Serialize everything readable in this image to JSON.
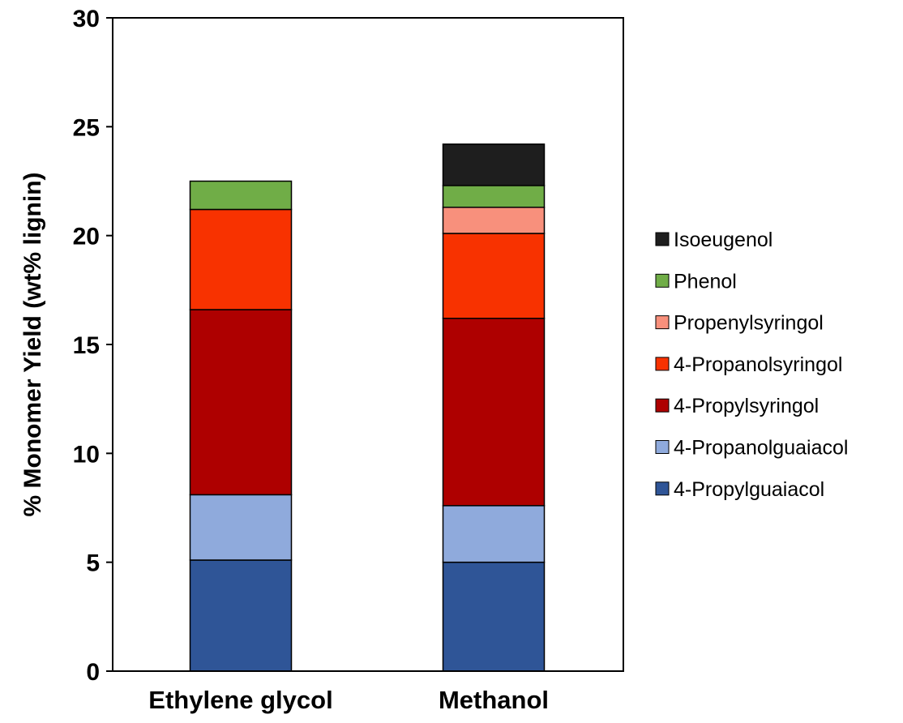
{
  "chart_data": {
    "type": "bar",
    "stacked": true,
    "title": "",
    "xlabel": "",
    "ylabel": "% Monomer Yield (wt% lignin)",
    "ylim": [
      0,
      30
    ],
    "yticks": [
      "0",
      "5",
      "10",
      "15",
      "20",
      "25",
      "30"
    ],
    "categories": [
      "Ethylene glycol",
      "Methanol"
    ],
    "grid": false,
    "legend_position": "right",
    "series": [
      {
        "name": "4-Propylguaiacol",
        "color": "#2F5597",
        "values": [
          5.1,
          5.0
        ]
      },
      {
        "name": "4-Propanolguaiacol",
        "color": "#8FAADC",
        "values": [
          3.0,
          2.6
        ]
      },
      {
        "name": "4-Propylsyringol",
        "color": "#AE0000",
        "values": [
          8.5,
          8.6
        ]
      },
      {
        "name": "4-Propanolsyringol",
        "color": "#F83200",
        "values": [
          4.6,
          3.9
        ]
      },
      {
        "name": "Propenylsyringol",
        "color": "#F8907C",
        "values": [
          0.0,
          1.2
        ]
      },
      {
        "name": "Phenol",
        "color": "#70AD47",
        "values": [
          1.3,
          1.0
        ]
      },
      {
        "name": "Isoeugenol",
        "color": "#1E1E1E",
        "values": [
          0.0,
          1.9
        ]
      }
    ]
  }
}
